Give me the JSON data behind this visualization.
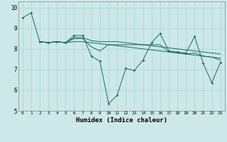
{
  "xlabel": "Humidex (Indice chaleur)",
  "xlim": [
    -0.5,
    23.5
  ],
  "ylim": [
    5,
    10.3
  ],
  "yticks": [
    5,
    6,
    7,
    8,
    9,
    10
  ],
  "bg_color": "#cce8e8",
  "grid_color": "#aad4d4",
  "line_color": "#1a6b5a",
  "line1_x": [
    0,
    1,
    2,
    3,
    4,
    5,
    6,
    7,
    8,
    9,
    10,
    11,
    12,
    13,
    14,
    15,
    16,
    17,
    18,
    19,
    20,
    21,
    22,
    23
  ],
  "line1_y": [
    9.5,
    9.75,
    8.35,
    8.3,
    8.35,
    8.3,
    8.65,
    8.65,
    7.65,
    7.4,
    5.35,
    5.75,
    7.05,
    6.95,
    7.45,
    8.3,
    8.75,
    7.9,
    7.85,
    7.8,
    8.6,
    7.3,
    6.35,
    7.35
  ],
  "line2_x": [
    2,
    3,
    4,
    5,
    6,
    7,
    8,
    9,
    10,
    11,
    12,
    13,
    14,
    15,
    16,
    17,
    18,
    19,
    20,
    21,
    22,
    23
  ],
  "line2_y": [
    8.35,
    8.3,
    8.35,
    8.3,
    8.55,
    8.55,
    8.4,
    8.35,
    8.35,
    8.35,
    8.3,
    8.25,
    8.2,
    8.15,
    8.1,
    8.05,
    8.0,
    7.95,
    7.9,
    7.85,
    7.8,
    7.75
  ],
  "line3_x": [
    2,
    3,
    4,
    5,
    6,
    7,
    8,
    9,
    10,
    11,
    12,
    13,
    14,
    15,
    16,
    17,
    18,
    19,
    20,
    21,
    22,
    23
  ],
  "line3_y": [
    8.35,
    8.3,
    8.35,
    8.3,
    8.5,
    8.5,
    8.1,
    7.9,
    8.2,
    8.2,
    8.2,
    8.2,
    8.2,
    8.2,
    8.2,
    7.85,
    7.8,
    7.75,
    7.8,
    7.65,
    7.6,
    7.45
  ],
  "line4_x": [
    2,
    3,
    4,
    5,
    6,
    7,
    8,
    9,
    10,
    11,
    12,
    13,
    14,
    15,
    16,
    17,
    18,
    19,
    20,
    21,
    22,
    23
  ],
  "line4_y": [
    8.35,
    8.3,
    8.35,
    8.3,
    8.35,
    8.35,
    8.3,
    8.25,
    8.2,
    8.15,
    8.1,
    8.05,
    8.0,
    7.95,
    7.9,
    7.85,
    7.8,
    7.75,
    7.7,
    7.65,
    7.6,
    7.55
  ]
}
